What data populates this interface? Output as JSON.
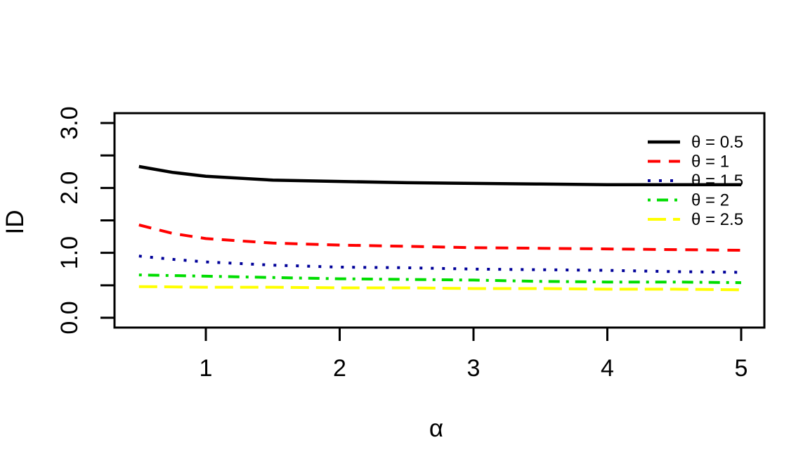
{
  "chart_data": {
    "type": "line",
    "title": "",
    "xlabel": "α",
    "ylabel": "ID",
    "xlim": [
      0.32,
      5.17
    ],
    "ylim": [
      -0.15,
      3.15
    ],
    "grid": false,
    "x_ticks": [
      1,
      2,
      3,
      4,
      5
    ],
    "y_ticks": [
      {
        "value": 0.0,
        "label": "0.0"
      },
      {
        "value": 0.5,
        "label": ""
      },
      {
        "value": 1.0,
        "label": "1.0"
      },
      {
        "value": 1.5,
        "label": ""
      },
      {
        "value": 2.0,
        "label": "2.0"
      },
      {
        "value": 2.5,
        "label": ""
      },
      {
        "value": 3.0,
        "label": "3.0"
      }
    ],
    "x": [
      0.5,
      0.75,
      1,
      1.5,
      2,
      2.5,
      3,
      3.5,
      4,
      4.5,
      5
    ],
    "series": [
      {
        "name": "θ = 0.5",
        "theta": 0.5,
        "color": "#000000",
        "line_style": "solid",
        "values": [
          2.33,
          2.24,
          2.18,
          2.12,
          2.1,
          2.08,
          2.07,
          2.06,
          2.05,
          2.05,
          2.05
        ]
      },
      {
        "name": "θ = 1",
        "theta": 1.0,
        "color": "#FF0000",
        "line_style": "dashed",
        "values": [
          1.43,
          1.3,
          1.22,
          1.15,
          1.12,
          1.1,
          1.08,
          1.07,
          1.06,
          1.05,
          1.04
        ]
      },
      {
        "name": "θ = 1.5",
        "theta": 1.5,
        "color": "#000099",
        "line_style": "dotted",
        "values": [
          0.95,
          0.9,
          0.86,
          0.81,
          0.78,
          0.77,
          0.75,
          0.74,
          0.73,
          0.71,
          0.7
        ]
      },
      {
        "name": "θ = 2",
        "theta": 2.0,
        "color": "#00DD00",
        "line_style": "dotdash",
        "values": [
          0.66,
          0.65,
          0.64,
          0.62,
          0.6,
          0.59,
          0.58,
          0.56,
          0.55,
          0.55,
          0.54
        ]
      },
      {
        "name": "θ = 2.5",
        "theta": 2.5,
        "color": "#FFFF00",
        "line_style": "longdash",
        "values": [
          0.48,
          0.475,
          0.47,
          0.47,
          0.46,
          0.46,
          0.45,
          0.45,
          0.44,
          0.44,
          0.43
        ]
      }
    ],
    "legend": {
      "position": "top-right"
    }
  }
}
